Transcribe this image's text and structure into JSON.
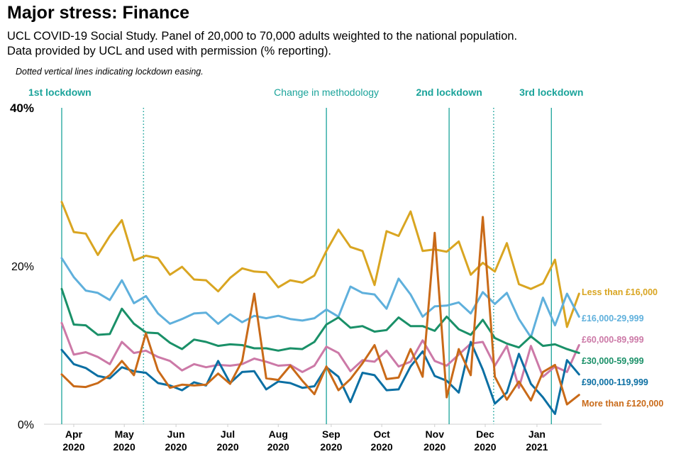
{
  "chart_data": {
    "type": "line",
    "title": "Major stress: Finance",
    "subtitle": [
      "UCL COVID-19 Social Study. Panel of 20,000 to 70,000 adults weighted to the national population.",
      "Data provided by UCL and used with permission (% reporting)."
    ],
    "note": "Dotted vertical lines indicating lockdown easing.",
    "xlabel": "",
    "ylabel": "",
    "ylim": [
      0,
      40
    ],
    "y_ticks": [
      {
        "value": 0,
        "label": "0%"
      },
      {
        "value": 20,
        "label": "20%"
      },
      {
        "value": 40,
        "label": "40%"
      }
    ],
    "x_ticks": [
      {
        "week": 1,
        "month": "Apr",
        "year": "2020"
      },
      {
        "week": 5.2,
        "month": "May",
        "year": "2020"
      },
      {
        "week": 9.5,
        "month": "Jun",
        "year": "2020"
      },
      {
        "week": 13.8,
        "month": "Jul",
        "year": "2020"
      },
      {
        "week": 18,
        "month": "Aug",
        "year": "2020"
      },
      {
        "week": 22.4,
        "month": "Sep",
        "year": "2020"
      },
      {
        "week": 26.6,
        "month": "Oct",
        "year": "2020"
      },
      {
        "week": 31,
        "month": "Nov",
        "year": "2020"
      },
      {
        "week": 35.2,
        "month": "Dec",
        "year": "2020"
      },
      {
        "week": 39.5,
        "month": "Jan",
        "year": "2021"
      }
    ],
    "events": [
      {
        "week": 0,
        "label": "1st lockdown",
        "style": "solid"
      },
      {
        "week": 22,
        "label": "Change in methodology",
        "style": "solid"
      },
      {
        "week": 32.2,
        "label": "2nd lockdown",
        "style": "solid"
      },
      {
        "week": 40.7,
        "label": "3rd lockdown",
        "style": "solid"
      },
      {
        "week": 6.8,
        "label": "",
        "style": "dotted"
      },
      {
        "week": 35.9,
        "label": "",
        "style": "dotted"
      }
    ],
    "series": [
      {
        "name": "Less than £16,000",
        "color": "#d9a521",
        "values": [
          28.1,
          24.3,
          24.1,
          21.4,
          23.8,
          25.8,
          20.7,
          21.3,
          21.0,
          18.9,
          19.9,
          18.3,
          18.2,
          16.8,
          18.5,
          19.7,
          19.3,
          19.2,
          17.3,
          18.2,
          17.9,
          18.8,
          21.9,
          24.6,
          22.4,
          21.9,
          17.6,
          24.4,
          23.8,
          26.9,
          21.9,
          22.1,
          21.8,
          23.1,
          18.9,
          20.4,
          19.3,
          22.9,
          17.7,
          17.1,
          17.8,
          20.8,
          12.3,
          16.5
        ]
      },
      {
        "name": "£16,000-29,999",
        "color": "#5fb0dc",
        "values": [
          21.0,
          18.6,
          16.9,
          16.6,
          15.7,
          18.2,
          15.3,
          16.2,
          14.0,
          12.7,
          13.3,
          14.0,
          14.1,
          12.7,
          13.9,
          12.9,
          13.7,
          13.4,
          13.7,
          13.3,
          13.1,
          13.4,
          14.5,
          13.6,
          17.4,
          16.6,
          16.4,
          14.6,
          18.4,
          16.4,
          13.6,
          14.9,
          15.0,
          15.4,
          14.0,
          16.7,
          15.2,
          16.6,
          13.3,
          11.0,
          16.0,
          12.5,
          16.5,
          13.6
        ]
      },
      {
        "name": "£60,000-89,999",
        "color": "#cc79a7",
        "values": [
          12.8,
          8.8,
          9.1,
          8.5,
          7.6,
          10.4,
          9.0,
          9.3,
          8.5,
          8.0,
          6.8,
          7.6,
          7.2,
          7.5,
          7.4,
          7.6,
          8.3,
          7.9,
          7.4,
          7.5,
          6.6,
          7.4,
          9.8,
          9.0,
          6.7,
          8.1,
          7.9,
          9.3,
          7.3,
          7.9,
          10.6,
          8.0,
          7.4,
          8.8,
          10.2,
          10.4,
          7.4,
          9.9,
          4.6,
          9.9,
          6.0,
          7.3,
          6.6,
          10.0
        ]
      },
      {
        "name": "£30,000-59,999",
        "color": "#1a9068",
        "values": [
          17.1,
          12.6,
          12.5,
          11.3,
          11.4,
          14.6,
          12.7,
          11.6,
          11.5,
          10.3,
          9.5,
          10.7,
          10.4,
          9.9,
          10.1,
          10.0,
          9.6,
          9.6,
          9.3,
          9.6,
          9.5,
          10.4,
          12.6,
          13.5,
          12.2,
          12.4,
          11.7,
          11.9,
          13.5,
          12.4,
          12.4,
          11.8,
          13.6,
          12.0,
          11.3,
          13.2,
          10.9,
          10.2,
          9.7,
          11.1,
          9.9,
          10.1,
          9.5,
          9.0
        ]
      },
      {
        "name": "£90,000-119,999",
        "color": "#0b6fa3",
        "values": [
          9.4,
          7.6,
          7.1,
          6.1,
          5.8,
          7.2,
          6.7,
          6.5,
          5.2,
          4.9,
          4.3,
          5.3,
          4.9,
          8.0,
          5.2,
          6.6,
          6.7,
          4.4,
          5.4,
          5.2,
          4.6,
          4.8,
          7.2,
          6.0,
          2.8,
          6.5,
          6.2,
          4.3,
          4.4,
          7.3,
          9.2,
          6.1,
          5.5,
          4.0,
          10.4,
          6.9,
          2.6,
          4.0,
          8.9,
          5.1,
          3.4,
          1.3,
          8.1,
          6.3
        ]
      },
      {
        "name": "More than £120,000",
        "color": "#c96a18",
        "values": [
          6.3,
          4.8,
          4.7,
          5.2,
          6.2,
          8.0,
          6.2,
          11.5,
          6.8,
          4.6,
          5.0,
          4.9,
          5.0,
          6.4,
          5.1,
          8.0,
          16.5,
          5.8,
          5.6,
          7.4,
          5.5,
          3.8,
          7.3,
          4.3,
          5.7,
          7.7,
          10.0,
          5.7,
          5.9,
          9.5,
          6.0,
          24.2,
          3.4,
          9.5,
          6.2,
          26.2,
          6.0,
          3.1,
          5.4,
          3.0,
          6.6,
          7.5,
          2.5,
          3.7
        ]
      }
    ]
  }
}
